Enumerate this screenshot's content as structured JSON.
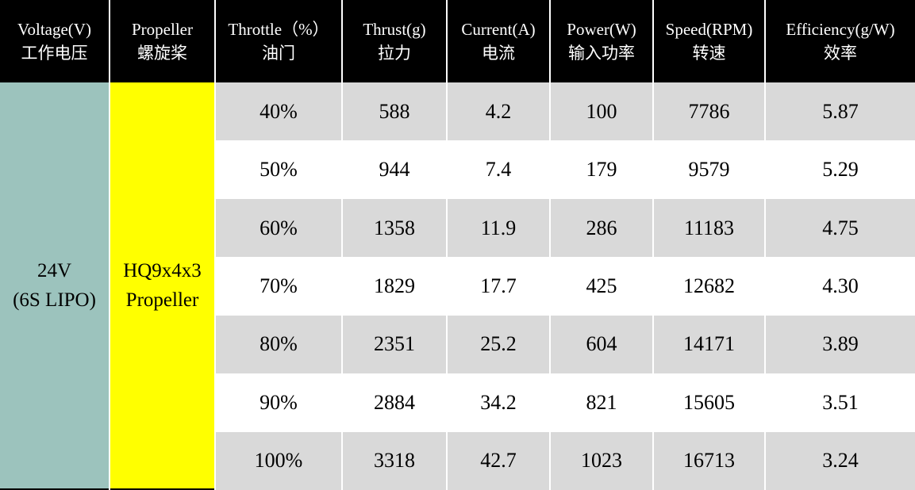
{
  "table": {
    "header": {
      "columns": [
        {
          "key": "voltage",
          "en": "Voltage(V)",
          "zh": "工作电压"
        },
        {
          "key": "propeller",
          "en": "Propeller",
          "zh": "螺旋桨"
        },
        {
          "key": "throttle",
          "en": "Throttle（%）",
          "zh": "油门"
        },
        {
          "key": "thrust",
          "en": "Thrust(g)",
          "zh": "拉力"
        },
        {
          "key": "current",
          "en": "Current(A)",
          "zh": "电流"
        },
        {
          "key": "power",
          "en": "Power(W)",
          "zh": "输入功率"
        },
        {
          "key": "speed",
          "en": "Speed(RPM)",
          "zh": "转速"
        },
        {
          "key": "efficiency",
          "en": "Efficiency(g/W)",
          "zh": "效率"
        }
      ]
    },
    "voltage_cell": {
      "line1": "24V",
      "line2": "(6S LIPO)"
    },
    "propeller_cell": {
      "line1": "HQ9x4x3",
      "line2": "Propeller"
    },
    "rows": [
      {
        "throttle": "40%",
        "thrust": "588",
        "current": "4.2",
        "power": "100",
        "speed": "7786",
        "efficiency": "5.87"
      },
      {
        "throttle": "50%",
        "thrust": "944",
        "current": "7.4",
        "power": "179",
        "speed": "9579",
        "efficiency": "5.29"
      },
      {
        "throttle": "60%",
        "thrust": "1358",
        "current": "11.9",
        "power": "286",
        "speed": "11183",
        "efficiency": "4.75"
      },
      {
        "throttle": "70%",
        "thrust": "1829",
        "current": "17.7",
        "power": "425",
        "speed": "12682",
        "efficiency": "4.30"
      },
      {
        "throttle": "80%",
        "thrust": "2351",
        "current": "25.2",
        "power": "604",
        "speed": "14171",
        "efficiency": "3.89"
      },
      {
        "throttle": "90%",
        "thrust": "2884",
        "current": "34.2",
        "power": "821",
        "speed": "15605",
        "efficiency": "3.51"
      },
      {
        "throttle": "100%",
        "thrust": "3318",
        "current": "42.7",
        "power": "1023",
        "speed": "16713",
        "efficiency": "3.24"
      }
    ]
  },
  "colors": {
    "header_bg": "#000000",
    "header_text": "#ffffff",
    "voltage_bg": "#9cc3bd",
    "propeller_bg": "#ffff00",
    "row_alt_bg": "#d9d9d9",
    "row_bg": "#ffffff",
    "divider": "#ffffff"
  },
  "chart_data": {
    "type": "table",
    "title": "HQ9x4x3 Propeller thrust test at 24V (6S LIPO)",
    "columns": [
      "Throttle (%)",
      "Thrust (g)",
      "Current (A)",
      "Power (W)",
      "Speed (RPM)",
      "Efficiency (g/W)"
    ],
    "rows": [
      [
        40,
        588,
        4.2,
        100,
        7786,
        5.87
      ],
      [
        50,
        944,
        7.4,
        179,
        9579,
        5.29
      ],
      [
        60,
        1358,
        11.9,
        286,
        11183,
        4.75
      ],
      [
        70,
        1829,
        17.7,
        425,
        12682,
        4.3
      ],
      [
        80,
        2351,
        25.2,
        604,
        14171,
        3.89
      ],
      [
        90,
        2884,
        34.2,
        821,
        15605,
        3.51
      ],
      [
        100,
        3318,
        42.7,
        1023,
        16713,
        3.24
      ]
    ]
  }
}
